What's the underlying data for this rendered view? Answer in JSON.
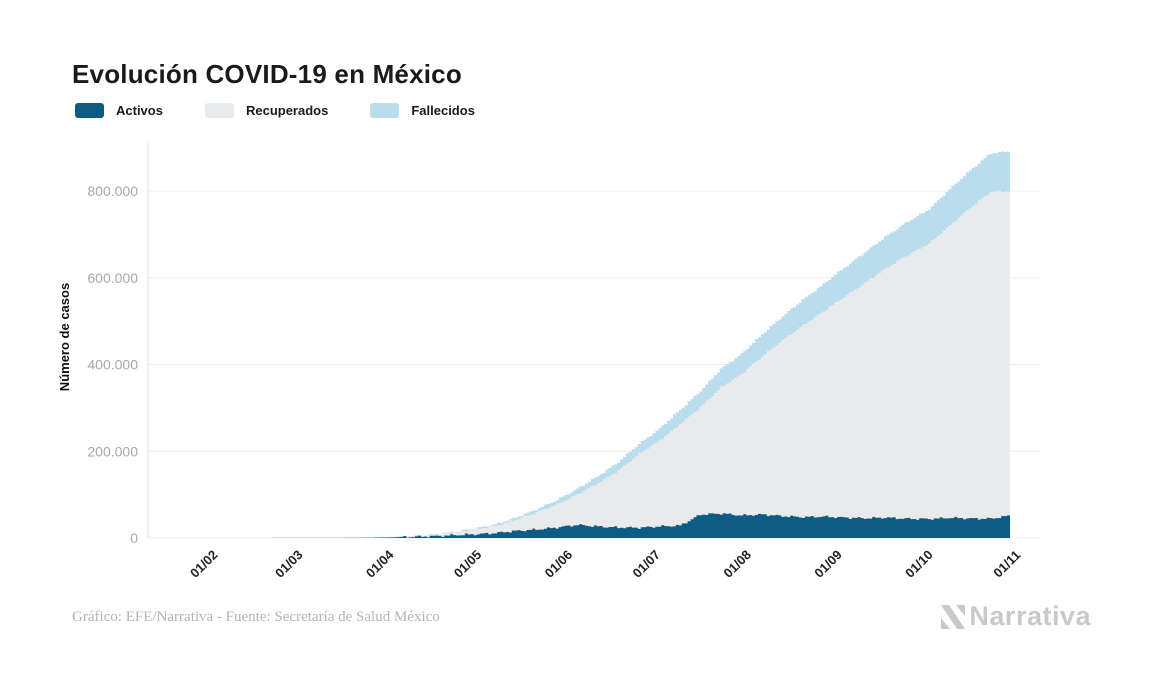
{
  "title": "Evolución COVID-19 en México",
  "legend": {
    "items": [
      {
        "label": "Activos",
        "color": "#0e5c84"
      },
      {
        "label": "Recuperados",
        "color": "#e9eaeb"
      },
      {
        "label": "Fallecidos",
        "color": "#b9ddec"
      }
    ]
  },
  "footer": {
    "credit": "Gráfico: EFE/Narrativa - Fuente: Secretaría de Salud México",
    "brand": "Narrativa"
  },
  "colors": {
    "grid": "#ededed",
    "axis_line": "#e2e2e2",
    "ytick_text": "#a8a8a8",
    "xtick_text": "#1f1f1f",
    "axis_title_text": "#111111",
    "brand_gray": "#c7c9cb"
  },
  "chart_data": {
    "type": "area",
    "stacked": true,
    "title": "Evolución COVID-19 en México",
    "xlabel": "",
    "ylabel": "Número de casos",
    "legend_position": "top-left",
    "grid": true,
    "ylim": [
      0,
      890000
    ],
    "ytick_values": [
      0,
      200000,
      400000,
      600000,
      800000
    ],
    "ytick_labels": [
      "0",
      "200.000",
      "400.000",
      "600.000",
      "800.000"
    ],
    "xtick_labels": [
      "01/02",
      "01/03",
      "01/04",
      "01/05",
      "01/06",
      "01/07",
      "01/08",
      "01/09",
      "01/10",
      "01/11"
    ],
    "x_dates": [
      "13/01",
      "01/02",
      "08/02",
      "15/02",
      "22/02",
      "29/02",
      "07/03",
      "14/03",
      "21/03",
      "28/03",
      "04/04",
      "11/04",
      "18/04",
      "25/04",
      "02/05",
      "09/05",
      "16/05",
      "23/05",
      "30/05",
      "06/06",
      "13/06",
      "20/06",
      "27/06",
      "04/07",
      "11/07",
      "18/07",
      "25/07",
      "01/08",
      "08/08",
      "15/08",
      "22/08",
      "29/08",
      "05/09",
      "12/09",
      "19/09",
      "26/09",
      "03/10",
      "10/10",
      "17/10",
      "24/10",
      "30/10"
    ],
    "series": [
      {
        "name": "Activos",
        "color": "#0e5c84",
        "values": [
          0,
          0,
          0,
          0,
          0,
          3,
          6,
          38,
          203,
          717,
          1510,
          2980,
          4110,
          6550,
          8610,
          11340,
          16520,
          19390,
          24210,
          30290,
          26500,
          24200,
          23850,
          26720,
          28610,
          54000,
          56500,
          52000,
          54200,
          50500,
          48000,
          49500,
          47000,
          45500,
          47000,
          44500,
          44000,
          46500,
          45000,
          44500,
          51000
        ]
      },
      {
        "name": "Recuperados",
        "color": "#e9eaeb",
        "values": [
          0,
          0,
          0,
          0,
          0,
          0,
          1,
          3,
          46,
          115,
          300,
          970,
          2700,
          5940,
          11210,
          16720,
          25580,
          39290,
          53520,
          70160,
          100250,
          131250,
          170420,
          197680,
          233860,
          248000,
          291370,
          325950,
          364690,
          405580,
          442620,
          473650,
          508760,
          542620,
          573870,
          605500,
          634860,
          674350,
          715940,
          753550,
          748510
        ]
      },
      {
        "name": "Fallecidos",
        "color": "#b9ddec",
        "values": [
          0,
          0,
          0,
          0,
          0,
          0,
          0,
          0,
          2,
          16,
          79,
          273,
          686,
          1350,
          2270,
          3465,
          5045,
          7180,
          9780,
          13170,
          15940,
          19750,
          22580,
          27770,
          32800,
          36900,
          42650,
          46690,
          50520,
          55290,
          59110,
          62590,
          67330,
          70180,
          73250,
          76430,
          79090,
          83640,
          86170,
          88750,
          91290
        ]
      }
    ]
  }
}
